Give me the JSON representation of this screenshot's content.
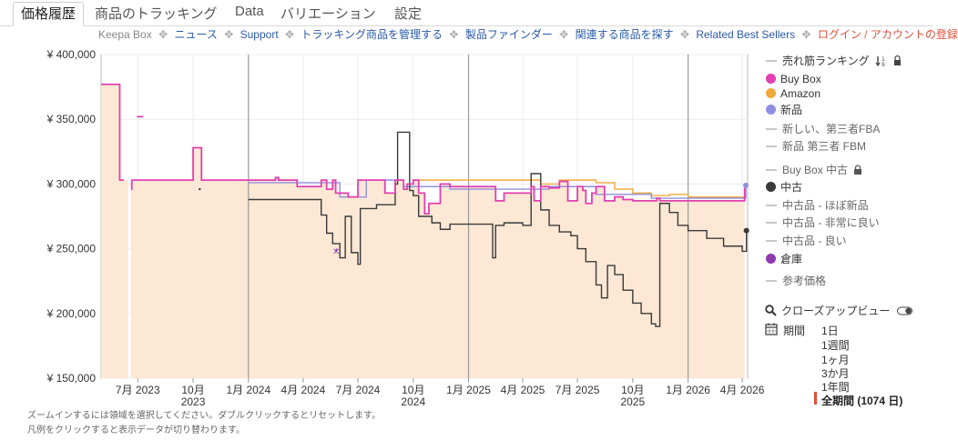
{
  "tabs": [
    {
      "label": "価格履歴",
      "active": true
    },
    {
      "label": "商品のトラッキング"
    },
    {
      "label": "Data"
    },
    {
      "label": "バリエーション"
    },
    {
      "label": "設定"
    }
  ],
  "links": {
    "brand": "Keepa Box",
    "items": [
      "ニュース",
      "Support",
      "トラッキング商品を管理する",
      "製品ファインダー",
      "関連する商品を探す",
      "Related Best Sellers"
    ],
    "login": "ログイン / アカウントの登録",
    "separator": "✥"
  },
  "legend": {
    "items": [
      {
        "label": "売れ筋ランキング",
        "style": "dash",
        "extra": "sort-lock"
      },
      {
        "label": "Buy Box",
        "style": "dot",
        "color": "#e23fb0"
      },
      {
        "label": "Amazon",
        "style": "dot",
        "color": "#f0a93b"
      },
      {
        "label": "新品",
        "style": "dot",
        "color": "#8f8fe0"
      },
      {
        "label": "新しい、第三者FBA",
        "style": "dash"
      },
      {
        "label": "新品 第三者 FBM",
        "style": "dash"
      },
      {
        "label": "Buy Box 中古",
        "style": "dash",
        "extra": "lock"
      },
      {
        "label": "中古",
        "style": "dot",
        "color": "#3a3a3a"
      },
      {
        "label": "中古品 - ほぼ新品",
        "style": "dash"
      },
      {
        "label": "中古品 - 非常に良い",
        "style": "dash"
      },
      {
        "label": "中古品 - 良い",
        "style": "dash"
      },
      {
        "label": "倉庫",
        "style": "dot",
        "color": "#8e3bb0"
      },
      {
        "label": "参考価格",
        "style": "dash"
      }
    ],
    "closeup_label": "クローズアップビュー"
  },
  "period": {
    "label": "期間",
    "options": [
      "1日",
      "1週間",
      "1ヶ月",
      "3か月",
      "1年間",
      "全期間 (1074 日)"
    ],
    "selected": "全期間 (1074 日)"
  },
  "footnotes": [
    "ズームインするには領域を選択してください。ダブルクリックするとリセットします。",
    "凡例をクリックすると表示データが切り替わります。"
  ],
  "colors": {
    "buybox": "#e23fb0",
    "amazon": "#f0a93b",
    "new": "#8f8fe0",
    "used": "#3a3a3a",
    "warehouse": "#8e3bb0",
    "fill": "#fce8d4",
    "period_marker": "#e0503a"
  },
  "chart_data": {
    "type": "line",
    "ylim": [
      150000,
      400000
    ],
    "y_ticks": [
      150000,
      200000,
      250000,
      300000,
      350000,
      400000
    ],
    "y_tick_labels": [
      "¥ 150,000",
      "¥ 200,000",
      "¥ 250,000",
      "¥ 300,000",
      "¥ 350,000",
      "¥ 400,000"
    ],
    "xlim": [
      "2023-05-01",
      "2026-04-10"
    ],
    "x_ticks": [
      {
        "date": "2023-07-01",
        "label": "7月 2023"
      },
      {
        "date": "2023-10-01",
        "label": "10月",
        "sub": "2023"
      },
      {
        "date": "2024-01-01",
        "label": "1月 2024"
      },
      {
        "date": "2024-04-01",
        "label": "4月 2024"
      },
      {
        "date": "2024-07-01",
        "label": "7月 2024"
      },
      {
        "date": "2024-10-01",
        "label": "10月",
        "sub": "2024"
      },
      {
        "date": "2025-01-01",
        "label": "1月 2025"
      },
      {
        "date": "2025-04-01",
        "label": "4月 2025"
      },
      {
        "date": "2025-07-01",
        "label": "7月 2025"
      },
      {
        "date": "2025-10-01",
        "label": "10月",
        "sub": "2025"
      },
      {
        "date": "2026-01-01",
        "label": "1月 2026"
      },
      {
        "date": "2026-04-01",
        "label": "4月 2026"
      }
    ],
    "year_lines": [
      "2024-01-01",
      "2025-01-01",
      "2026-01-01"
    ],
    "grid": true,
    "legend_position": "right",
    "series": [
      {
        "name": "Buy Box",
        "color": "#e23fb0",
        "step": true,
        "x": [
          "2023-05-01",
          "2023-05-27",
          "2023-06-01",
          "2023-06-08",
          "2023-06-15",
          "2023-06-16",
          "2023-06-20",
          "2023-06-21",
          "2023-09-01",
          "2023-10-01",
          "2023-10-08",
          "2023-10-15",
          "2024-02-01",
          "2024-02-15",
          "2024-02-20",
          "2024-03-15",
          "2024-03-22",
          "2024-05-01",
          "2024-05-10",
          "2024-05-20",
          "2024-05-25",
          "2024-06-15",
          "2024-07-01",
          "2024-08-15",
          "2024-09-01",
          "2024-09-15",
          "2024-09-21",
          "2024-10-01",
          "2024-10-10",
          "2024-10-20",
          "2024-10-27",
          "2024-11-15",
          "2024-12-01",
          "2024-12-15",
          "2025-02-01",
          "2025-02-15",
          "2025-03-01",
          "2025-04-15",
          "2025-04-20",
          "2025-05-01",
          "2025-05-15",
          "2025-06-01",
          "2025-06-15",
          "2025-07-01",
          "2025-07-10",
          "2025-07-15",
          "2025-07-25",
          "2025-08-01",
          "2025-08-15",
          "2025-09-01",
          "2025-09-15",
          "2025-10-01",
          "2025-11-01",
          "2025-11-10",
          "2025-11-15",
          "2026-01-01",
          "2026-04-01",
          "2026-04-05"
        ],
        "y": [
          377000,
          377000,
          303000,
          303000,
          null,
          null,
          296000,
          303000,
          303000,
          328000,
          328000,
          303000,
          303000,
          305000,
          303000,
          303000,
          298000,
          303000,
          296000,
          303000,
          293000,
          290000,
          303000,
          293000,
          303000,
          296000,
          300000,
          303000,
          293000,
          277000,
          285000,
          300000,
          298000,
          298000,
          298000,
          287000,
          293000,
          298000,
          287000,
          298000,
          297000,
          302000,
          287000,
          298000,
          295000,
          285000,
          293000,
          298000,
          287000,
          290000,
          288000,
          287000,
          287000,
          289000,
          287000,
          287000,
          287000,
          297000
        ]
      },
      {
        "name": "Amazon",
        "color": "#f0a93b",
        "step": true,
        "x": [
          "2024-10-10",
          "2024-12-01",
          "2025-03-01",
          "2025-05-01",
          "2025-06-01",
          "2025-08-01",
          "2025-09-01",
          "2025-10-01",
          "2025-11-01",
          "2025-12-01",
          "2026-01-01",
          "2026-04-05"
        ],
        "y": [
          303000,
          303000,
          303000,
          300000,
          303000,
          301000,
          296000,
          293000,
          291000,
          292000,
          290000,
          290000
        ]
      },
      {
        "name": "新品",
        "color": "#8f8fe0",
        "step": true,
        "x": [
          "2024-01-01",
          "2024-03-01",
          "2024-06-01",
          "2024-07-15",
          "2024-09-15",
          "2024-12-01",
          "2025-03-01",
          "2025-05-15",
          "2025-08-01",
          "2025-11-01",
          "2026-04-07"
        ],
        "y": [
          301000,
          301000,
          290000,
          303000,
          298000,
          296000,
          296000,
          298000,
          292000,
          289000,
          299000
        ]
      },
      {
        "name": "中古",
        "color": "#3a3a3a",
        "step": true,
        "x": [
          "2024-01-01",
          "2024-04-01",
          "2024-05-01",
          "2024-05-10",
          "2024-05-20",
          "2024-06-01",
          "2024-06-10",
          "2024-06-20",
          "2024-07-01",
          "2024-07-05",
          "2024-07-15",
          "2024-08-01",
          "2024-09-01",
          "2024-09-05",
          "2024-09-25",
          "2024-10-01",
          "2024-10-10",
          "2024-11-01",
          "2024-11-15",
          "2024-12-01",
          "2025-01-01",
          "2025-02-10",
          "2025-02-15",
          "2025-03-01",
          "2025-04-01",
          "2025-04-15",
          "2025-05-01",
          "2025-05-15",
          "2025-06-01",
          "2025-06-20",
          "2025-07-01",
          "2025-07-15",
          "2025-08-01",
          "2025-08-10",
          "2025-08-20",
          "2025-09-01",
          "2025-09-15",
          "2025-10-01",
          "2025-10-15",
          "2025-11-01",
          "2025-11-08",
          "2025-11-15",
          "2025-12-01",
          "2025-12-15",
          "2026-01-01",
          "2026-02-01",
          "2026-03-01",
          "2026-04-01",
          "2026-04-08"
        ],
        "y": [
          288000,
          288000,
          276000,
          262000,
          254000,
          243000,
          275000,
          247000,
          238000,
          281000,
          281000,
          284000,
          300000,
          340000,
          295000,
          291000,
          275000,
          270000,
          265000,
          269000,
          269000,
          243000,
          268000,
          270000,
          268000,
          308000,
          280000,
          268000,
          263000,
          260000,
          250000,
          240000,
          222000,
          212000,
          237000,
          230000,
          218000,
          208000,
          200000,
          192000,
          190000,
          285000,
          278000,
          268000,
          264000,
          258000,
          252000,
          248000,
          264000
        ]
      },
      {
        "name": "倉庫",
        "color": "#8e3bb0",
        "step": false,
        "x": [
          "2024-05-25",
          "2024-05-27"
        ],
        "y": [
          248000,
          250000
        ]
      }
    ]
  }
}
